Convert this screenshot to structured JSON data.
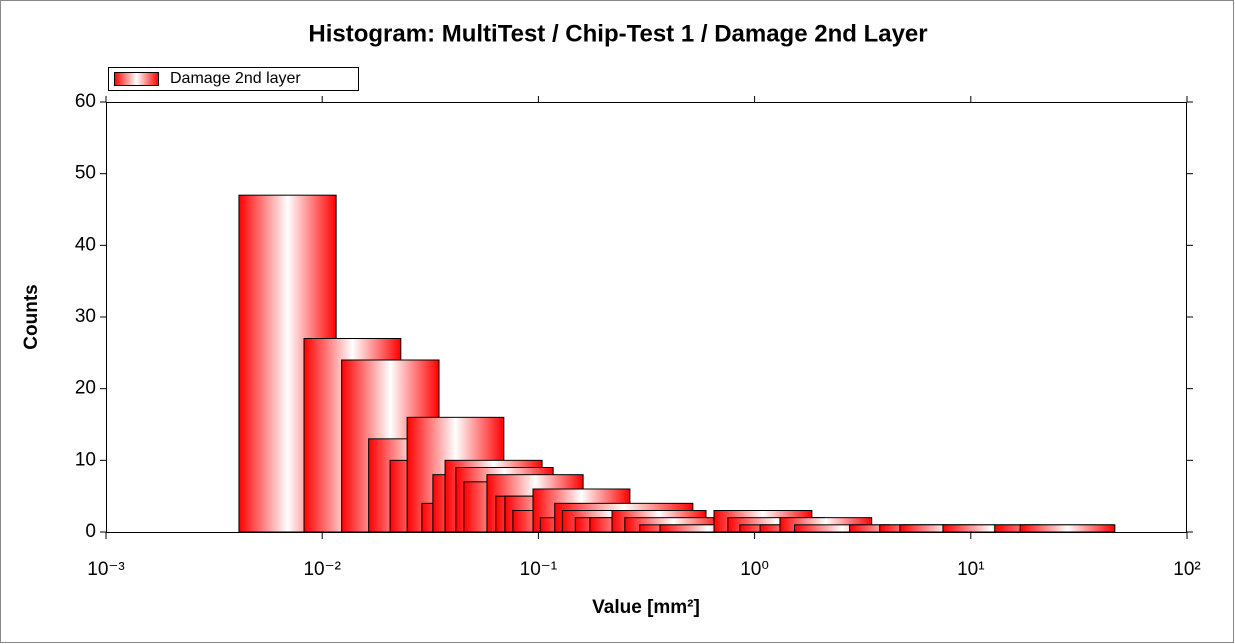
{
  "chart_data": {
    "type": "histogram",
    "title": "Histogram: MultiTest / Chip-Test 1 / Damage 2nd Layer",
    "x_label": "Value [mm²]",
    "y_label": "Counts",
    "series_name": "Damage 2nd layer",
    "color": "#ff0000",
    "x_scale": "log",
    "xlim": [
      0.001,
      100
    ],
    "xticks": [
      {
        "value": 0.001,
        "label": "10⁻³"
      },
      {
        "value": 0.01,
        "label": "10⁻²"
      },
      {
        "value": 0.1,
        "label": "10⁻¹"
      },
      {
        "value": 1,
        "label": "10⁰"
      },
      {
        "value": 10,
        "label": "10¹"
      },
      {
        "value": 100,
        "label": "10²"
      }
    ],
    "ylim": [
      0,
      60
    ],
    "yticks": [
      0,
      10,
      20,
      30,
      40,
      50,
      60
    ],
    "x_left": [
      0.00412,
      0.00824,
      0.0123,
      0.0164,
      0.0206,
      0.0247,
      0.0289,
      0.0325,
      0.037,
      0.0415,
      0.0452,
      0.0578,
      0.0635,
      0.07,
      0.0762,
      0.0944,
      0.102,
      0.119,
      0.129,
      0.148,
      0.173,
      0.219,
      0.251,
      0.294,
      0.365,
      0.649,
      0.752,
      0.855,
      1.06,
      1.31,
      1.53,
      2.75,
      3.79,
      4.7,
      7.43,
      12.9,
      16.9
    ],
    "x_right": [
      0.0116,
      0.0231,
      0.0347,
      0.0463,
      0.0578,
      0.0692,
      0.0813,
      0.0914,
      0.104,
      0.117,
      0.127,
      0.161,
      0.179,
      0.197,
      0.214,
      0.265,
      0.285,
      0.518,
      0.365,
      0.414,
      0.486,
      0.596,
      0.706,
      0.811,
      1.02,
      1.84,
      2.11,
      2.43,
      3.0,
      3.48,
      4.22,
      7.59,
      10.4,
      12.9,
      20.8,
      46.3,
      46.3
    ],
    "values": [
      47,
      27,
      24,
      13,
      10,
      16,
      4,
      8,
      10,
      9,
      7,
      8,
      5,
      5,
      3,
      6,
      2,
      4,
      3,
      2,
      2,
      3,
      2,
      1,
      1,
      3,
      2,
      1,
      1,
      2,
      1,
      1,
      1,
      1,
      1,
      1,
      1
    ]
  }
}
